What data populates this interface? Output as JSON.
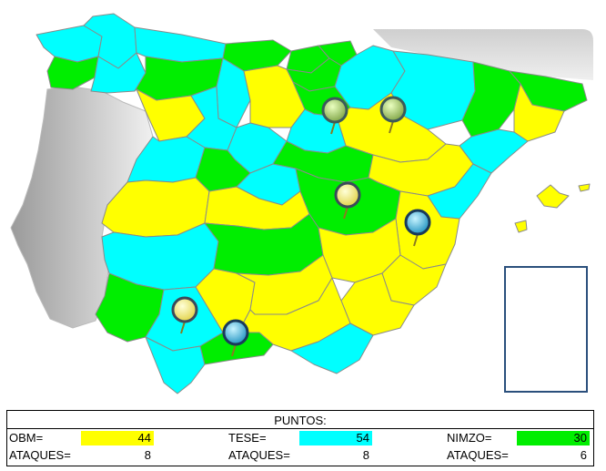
{
  "colors": {
    "obm": "#ffff00",
    "tese": "#00ffff",
    "nimzo": "#00ee00",
    "border": "#8a8a8a",
    "legend_border": "#2a4f7c"
  },
  "markers": [
    {
      "id": "marker-navarra",
      "type": "tese-green-pin"
    },
    {
      "id": "marker-huesca",
      "type": "green-pin"
    },
    {
      "id": "marker-cuenca",
      "type": "yellow-pin"
    },
    {
      "id": "marker-valencia",
      "type": "blue-pin"
    },
    {
      "id": "marker-sevilla",
      "type": "yellow-pin"
    },
    {
      "id": "marker-malaga",
      "type": "blue-pin"
    }
  ],
  "table": {
    "title": "PUNTOS:",
    "rows": [
      {
        "key": "obm",
        "label": "OBM=",
        "value": "44",
        "attacks_label": "ATAQUES=",
        "attacks": "8"
      },
      {
        "key": "tese",
        "label": "TESE=",
        "value": "54",
        "attacks_label": "ATAQUES=",
        "attacks": "8"
      },
      {
        "key": "nimzo",
        "label": "NIMZO=",
        "value": "30",
        "attacks_label": "ATAQUES=",
        "attacks": "6"
      }
    ]
  }
}
